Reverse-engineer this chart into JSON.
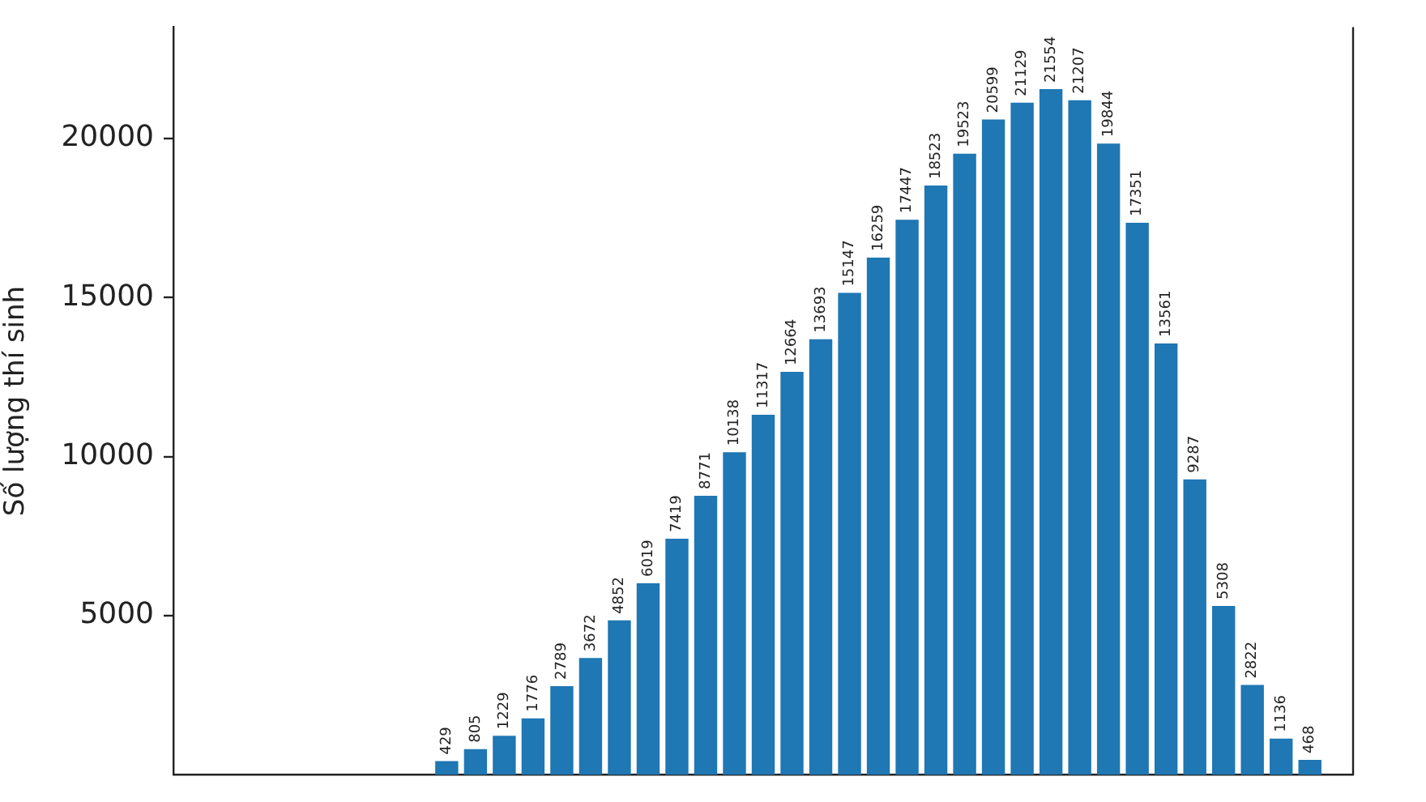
{
  "chart_data": {
    "type": "bar",
    "ylabel": "Số lượng thí sinh",
    "categories": [
      null,
      null,
      null,
      null,
      null,
      null,
      null,
      null,
      null,
      null,
      null,
      null,
      null,
      null,
      null,
      null,
      null,
      null,
      null,
      null,
      null,
      null,
      null,
      null,
      null,
      null,
      null,
      null,
      null,
      null,
      null,
      null,
      null,
      null,
      null,
      null,
      null,
      null,
      null,
      null,
      null
    ],
    "values": [
      null,
      null,
      null,
      null,
      null,
      null,
      null,
      null,
      null,
      429,
      805,
      1229,
      1776,
      2789,
      3672,
      4852,
      6019,
      7419,
      8771,
      10138,
      11317,
      12664,
      13693,
      15147,
      16259,
      17447,
      18523,
      19523,
      20599,
      21129,
      21554,
      21207,
      19844,
      17351,
      13561,
      9287,
      5308,
      2822,
      1136,
      468,
      null
    ],
    "color": "#1f77b4",
    "ylim": [
      0,
      23500
    ],
    "yticks": [
      5000,
      10000,
      15000,
      20000
    ],
    "tick_labels": "y",
    "data_labels": true
  }
}
